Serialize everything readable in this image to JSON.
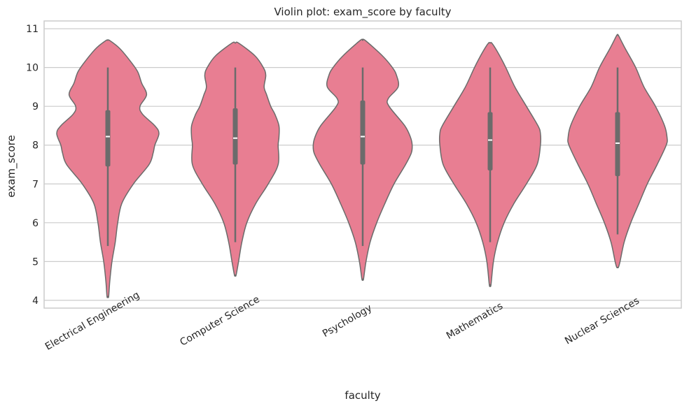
{
  "chart_data": {
    "type": "violin",
    "title": "Violin plot: exam_score by faculty",
    "xlabel": "faculty",
    "ylabel": "exam_score",
    "ylim": [
      3.8,
      11.2
    ],
    "yticks": [
      4,
      5,
      6,
      7,
      8,
      9,
      10,
      11
    ],
    "grid": true,
    "legend": "none",
    "colors": {
      "violin_fill": "#e87e92",
      "outline": "#6b6b6b",
      "grid": "#cccccc",
      "frame": "#cccccc",
      "median": "#ffffff"
    },
    "categories": [
      "Electrical Engineering",
      "Computer Science",
      "Psychology",
      "Mathematics",
      "Nuclear Sciences"
    ],
    "series": [
      {
        "category": "Electrical Engineering",
        "min": 5.4,
        "q1": 7.45,
        "median": 8.22,
        "q3": 8.9,
        "max": 10.0,
        "density_range": [
          4.1,
          10.7
        ],
        "density": [
          [
            4.1,
            0.05
          ],
          [
            4.5,
            0.12
          ],
          [
            5.0,
            0.25
          ],
          [
            5.5,
            0.45
          ],
          [
            6.0,
            0.6
          ],
          [
            6.5,
            0.85
          ],
          [
            7.0,
            1.55
          ],
          [
            7.5,
            2.5
          ],
          [
            7.8,
            2.75
          ],
          [
            8.0,
            2.85
          ],
          [
            8.3,
            3.1
          ],
          [
            8.5,
            2.85
          ],
          [
            8.8,
            2.1
          ],
          [
            9.0,
            1.95
          ],
          [
            9.3,
            2.35
          ],
          [
            9.6,
            2.05
          ],
          [
            9.9,
            1.8
          ],
          [
            10.2,
            1.3
          ],
          [
            10.5,
            0.7
          ],
          [
            10.7,
            0.1
          ]
        ]
      },
      {
        "category": "Computer Science",
        "min": 5.5,
        "q1": 7.5,
        "median": 8.18,
        "q3": 8.95,
        "max": 10.0,
        "density_range": [
          4.65,
          10.63
        ],
        "density": [
          [
            4.65,
            0.05
          ],
          [
            5.0,
            0.2
          ],
          [
            5.5,
            0.4
          ],
          [
            6.0,
            0.7
          ],
          [
            6.5,
            1.25
          ],
          [
            7.0,
            2.0
          ],
          [
            7.5,
            2.6
          ],
          [
            8.0,
            2.6
          ],
          [
            8.2,
            2.65
          ],
          [
            8.5,
            2.65
          ],
          [
            8.8,
            2.4
          ],
          [
            9.0,
            2.15
          ],
          [
            9.3,
            1.9
          ],
          [
            9.5,
            1.75
          ],
          [
            9.8,
            1.85
          ],
          [
            10.0,
            1.7
          ],
          [
            10.3,
            1.2
          ],
          [
            10.63,
            0.2
          ]
        ]
      },
      {
        "category": "Psychology",
        "min": 5.4,
        "q1": 7.5,
        "median": 8.22,
        "q3": 9.15,
        "max": 10.0,
        "density_range": [
          4.55,
          10.7
        ],
        "density": [
          [
            4.55,
            0.05
          ],
          [
            5.0,
            0.2
          ],
          [
            5.5,
            0.45
          ],
          [
            6.0,
            0.85
          ],
          [
            6.5,
            1.35
          ],
          [
            7.0,
            1.9
          ],
          [
            7.5,
            2.6
          ],
          [
            7.8,
            2.95
          ],
          [
            8.0,
            3.0
          ],
          [
            8.2,
            2.9
          ],
          [
            8.5,
            2.55
          ],
          [
            9.0,
            1.6
          ],
          [
            9.2,
            1.55
          ],
          [
            9.5,
            2.15
          ],
          [
            9.8,
            2.05
          ],
          [
            10.0,
            1.8
          ],
          [
            10.3,
            1.2
          ],
          [
            10.7,
            0.15
          ]
        ]
      },
      {
        "category": "Mathematics",
        "min": 5.5,
        "q1": 7.35,
        "median": 8.13,
        "q3": 8.85,
        "max": 10.0,
        "density_range": [
          4.4,
          10.63
        ],
        "density": [
          [
            4.4,
            0.05
          ],
          [
            5.0,
            0.2
          ],
          [
            5.5,
            0.45
          ],
          [
            6.0,
            0.85
          ],
          [
            6.5,
            1.45
          ],
          [
            7.0,
            2.2
          ],
          [
            7.5,
            2.85
          ],
          [
            8.0,
            3.05
          ],
          [
            8.3,
            3.05
          ],
          [
            8.5,
            2.9
          ],
          [
            9.0,
            2.2
          ],
          [
            9.5,
            1.5
          ],
          [
            10.0,
            0.95
          ],
          [
            10.4,
            0.45
          ],
          [
            10.63,
            0.1
          ]
        ]
      },
      {
        "category": "Nuclear Sciences",
        "min": 5.7,
        "q1": 7.2,
        "median": 8.05,
        "q3": 8.85,
        "max": 10.0,
        "density_range": [
          4.85,
          10.83
        ],
        "density": [
          [
            4.85,
            0.05
          ],
          [
            5.0,
            0.15
          ],
          [
            5.5,
            0.4
          ],
          [
            6.0,
            0.8
          ],
          [
            6.5,
            1.3
          ],
          [
            7.0,
            1.8
          ],
          [
            7.5,
            2.4
          ],
          [
            8.0,
            2.95
          ],
          [
            8.2,
            3.0
          ],
          [
            8.5,
            2.85
          ],
          [
            9.0,
            2.3
          ],
          [
            9.5,
            1.6
          ],
          [
            10.0,
            1.1
          ],
          [
            10.5,
            0.45
          ],
          [
            10.83,
            0.05
          ]
        ]
      }
    ]
  }
}
